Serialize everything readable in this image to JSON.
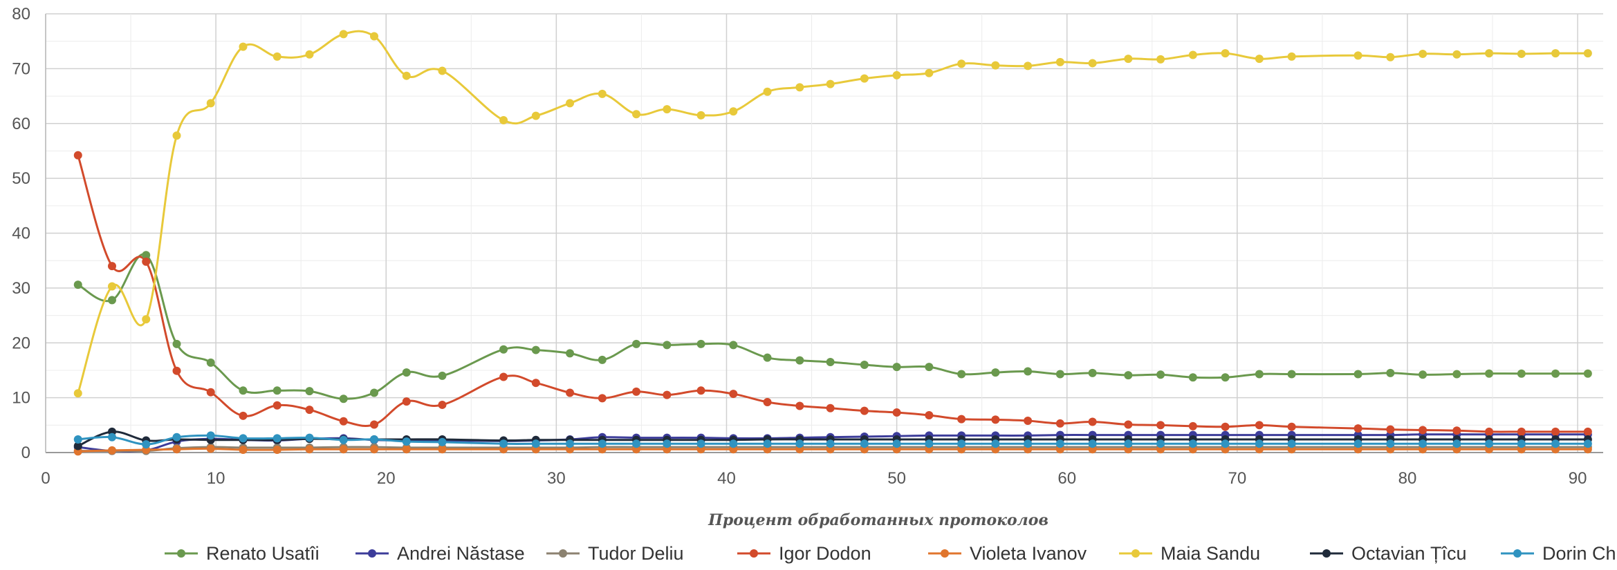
{
  "chart_data": {
    "type": "line",
    "title": "",
    "xlabel": "Процент обработанных протоколов",
    "ylabel": "",
    "xlim": [
      0,
      91.5
    ],
    "ylim": [
      0,
      80
    ],
    "xticks": [
      0,
      10,
      20,
      30,
      40,
      50,
      60,
      70,
      80,
      90
    ],
    "yticks": [
      0,
      10,
      20,
      30,
      40,
      50,
      60,
      70,
      80
    ],
    "grid": true,
    "legend_position": "bottom",
    "x": [
      1.9,
      3.9,
      5.9,
      7.7,
      9.7,
      11.6,
      13.6,
      15.5,
      17.5,
      19.3,
      21.2,
      23.3,
      26.9,
      28.8,
      30.8,
      32.7,
      34.7,
      36.5,
      38.5,
      40.4,
      42.4,
      44.3,
      46.1,
      48.1,
      50.0,
      51.9,
      53.8,
      55.8,
      57.7,
      59.6,
      61.5,
      63.6,
      65.5,
      67.4,
      69.3,
      71.3,
      73.2,
      77.1,
      79.0,
      80.9,
      82.9,
      84.8,
      86.7,
      88.7,
      90.6
    ],
    "series": [
      {
        "name": "Renato Usatîi",
        "color": "#6a994e",
        "values": [
          30.6,
          27.8,
          36.0,
          19.8,
          16.4,
          11.3,
          11.3,
          11.2,
          9.8,
          10.9,
          14.6,
          14.0,
          18.8,
          18.7,
          18.1,
          16.9,
          19.8,
          19.6,
          19.8,
          19.6,
          17.3,
          16.8,
          16.5,
          16.0,
          15.6,
          15.6,
          14.3,
          14.6,
          14.8,
          14.3,
          14.5,
          14.1,
          14.2,
          13.7,
          13.7,
          14.3,
          14.3,
          14.3,
          14.5,
          14.2,
          14.3,
          14.4,
          14.4,
          14.4,
          14.4
        ]
      },
      {
        "name": "Andrei Năstase",
        "color": "#3c3c9a",
        "values": [
          1.0,
          0.3,
          0.4,
          2.0,
          2.5,
          2.3,
          2.2,
          2.5,
          2.6,
          2.3,
          2.2,
          2.2,
          2.1,
          2.2,
          2.4,
          2.8,
          2.7,
          2.7,
          2.7,
          2.6,
          2.6,
          2.7,
          2.8,
          2.9,
          3.0,
          3.1,
          3.1,
          3.1,
          3.1,
          3.2,
          3.2,
          3.2,
          3.2,
          3.2,
          3.2,
          3.2,
          3.2,
          3.2,
          3.2,
          3.3,
          3.3,
          3.3,
          3.3,
          3.3,
          3.3
        ]
      },
      {
        "name": "Tudor Deliu",
        "color": "#8c8270",
        "values": [
          0.3,
          0.3,
          0.3,
          0.8,
          1.0,
          0.9,
          0.9,
          0.9,
          1.0,
          1.0,
          0.9,
          0.9,
          0.9,
          0.9,
          0.9,
          1.0,
          1.0,
          1.0,
          1.0,
          1.0,
          1.0,
          1.0,
          1.0,
          1.0,
          1.0,
          1.0,
          1.0,
          1.0,
          1.0,
          1.0,
          1.0,
          1.0,
          1.0,
          1.0,
          1.0,
          1.0,
          1.0,
          1.0,
          1.0,
          1.0,
          1.0,
          1.0,
          1.0,
          1.0,
          1.0
        ]
      },
      {
        "name": "Igor Dodon",
        "color": "#d24a2b",
        "values": [
          54.2,
          34.0,
          34.8,
          14.9,
          11.0,
          6.7,
          8.6,
          7.8,
          5.7,
          5.1,
          9.3,
          8.7,
          13.8,
          12.7,
          10.9,
          9.9,
          11.1,
          10.5,
          11.3,
          10.7,
          9.2,
          8.5,
          8.1,
          7.6,
          7.3,
          6.8,
          6.1,
          6.0,
          5.8,
          5.3,
          5.6,
          5.1,
          5.0,
          4.8,
          4.7,
          5.0,
          4.7,
          4.4,
          4.2,
          4.1,
          4.0,
          3.8,
          3.8,
          3.8,
          3.8
        ]
      },
      {
        "name": "Violeta Ivanov",
        "color": "#e0752d",
        "values": [
          0.2,
          0.4,
          0.5,
          0.6,
          0.7,
          0.5,
          0.5,
          0.6,
          0.6,
          0.6,
          0.6,
          0.6,
          0.6,
          0.6,
          0.6,
          0.6,
          0.6,
          0.6,
          0.6,
          0.6,
          0.6,
          0.6,
          0.6,
          0.6,
          0.6,
          0.6,
          0.6,
          0.6,
          0.6,
          0.6,
          0.6,
          0.6,
          0.6,
          0.6,
          0.6,
          0.6,
          0.6,
          0.6,
          0.6,
          0.6,
          0.6,
          0.6,
          0.6,
          0.6,
          0.6
        ]
      },
      {
        "name": "Maia Sandu",
        "color": "#e8c93a",
        "values": [
          10.8,
          30.3,
          24.3,
          57.8,
          63.7,
          74.0,
          72.2,
          72.6,
          76.3,
          75.9,
          68.7,
          69.6,
          60.6,
          61.4,
          63.7,
          65.4,
          61.7,
          62.6,
          61.5,
          62.2,
          65.8,
          66.6,
          67.2,
          68.2,
          68.8,
          69.2,
          70.9,
          70.6,
          70.5,
          71.2,
          71.0,
          71.8,
          71.7,
          72.5,
          72.8,
          71.8,
          72.2,
          72.4,
          72.1,
          72.7,
          72.6,
          72.8,
          72.7,
          72.8,
          72.8
        ]
      },
      {
        "name": "Octavian Țîcu",
        "color": "#1f2a3a",
        "values": [
          1.2,
          3.8,
          2.2,
          2.4,
          2.3,
          2.3,
          2.3,
          2.5,
          2.4,
          2.4,
          2.4,
          2.4,
          2.2,
          2.3,
          2.3,
          2.3,
          2.3,
          2.3,
          2.3,
          2.3,
          2.4,
          2.4,
          2.4,
          2.4,
          2.4,
          2.4,
          2.4,
          2.4,
          2.4,
          2.4,
          2.4,
          2.4,
          2.4,
          2.4,
          2.4,
          2.4,
          2.4,
          2.4,
          2.4,
          2.4,
          2.4,
          2.4,
          2.4,
          2.4,
          2.4
        ]
      },
      {
        "name": "Dorin Chirtoacă",
        "color": "#2f93c0",
        "values": [
          2.4,
          2.8,
          1.5,
          2.8,
          3.1,
          2.6,
          2.6,
          2.7,
          2.3,
          2.4,
          2.0,
          1.9,
          1.6,
          1.6,
          1.6,
          1.6,
          1.6,
          1.6,
          1.6,
          1.6,
          1.6,
          1.6,
          1.6,
          1.6,
          1.6,
          1.6,
          1.6,
          1.6,
          1.6,
          1.6,
          1.6,
          1.6,
          1.6,
          1.6,
          1.6,
          1.6,
          1.6,
          1.6,
          1.6,
          1.6,
          1.6,
          1.6,
          1.6,
          1.6,
          1.6
        ]
      }
    ]
  }
}
